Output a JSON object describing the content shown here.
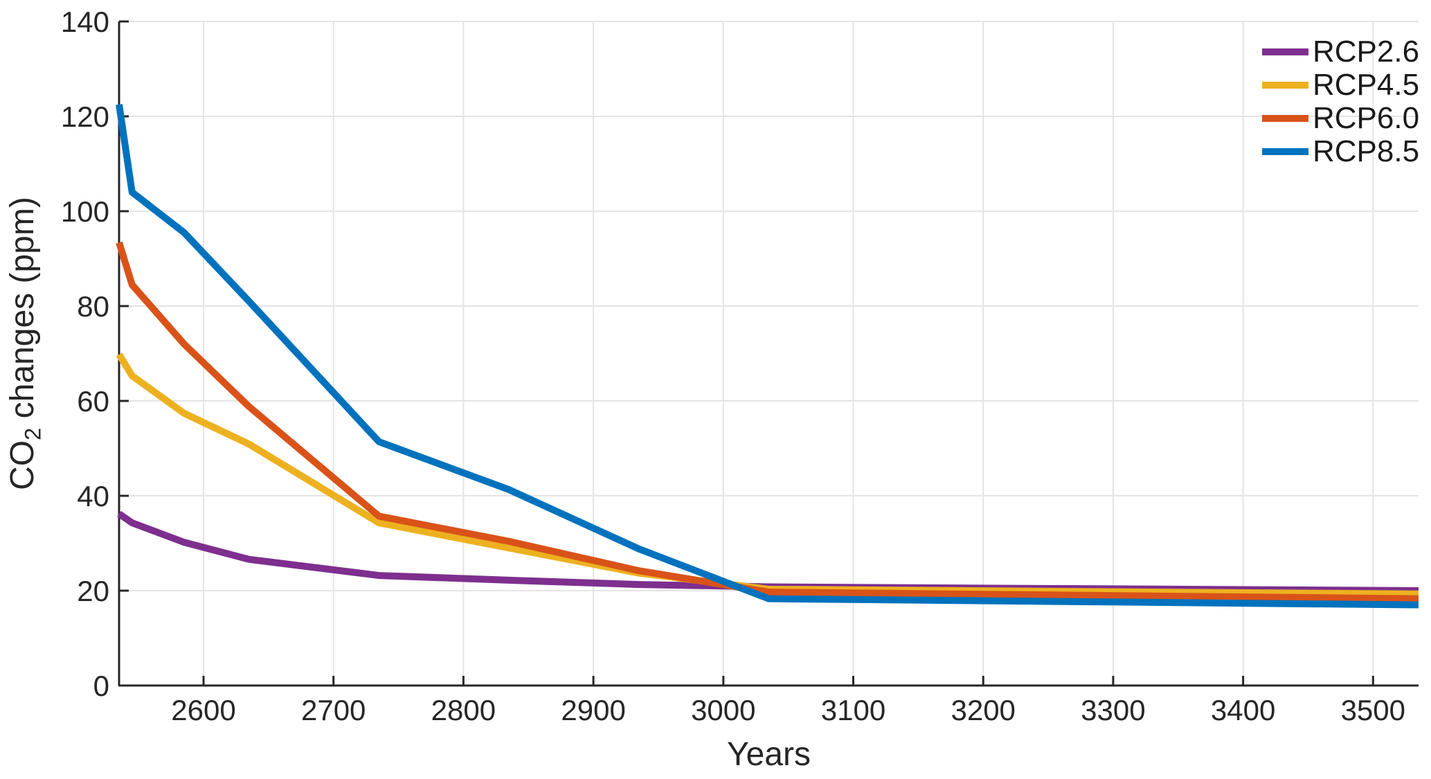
{
  "style": {
    "background": "#ffffff",
    "axis_color": "#262626",
    "grid_color": "#e4e4e4",
    "text_color": "#262626",
    "line_width": 10
  },
  "chart_data": {
    "type": "line",
    "title": "",
    "xlabel": "Years",
    "ylabel": "CO2 changes (ppm)",
    "ylabel_parts": {
      "pre": "CO",
      "sub": "2",
      "post": " changes (ppm)"
    },
    "xlim": [
      2535,
      3535
    ],
    "ylim": [
      0,
      140
    ],
    "xticks": [
      2600,
      2700,
      2800,
      2900,
      3000,
      3100,
      3200,
      3300,
      3400,
      3500
    ],
    "yticks": [
      0,
      20,
      40,
      60,
      80,
      100,
      120,
      140
    ],
    "grid": true,
    "legend_position": "top-right",
    "x": [
      2535,
      2545,
      2585,
      2635,
      2735,
      2835,
      2935,
      3035,
      3535
    ],
    "series": [
      {
        "name": "RCP2.6",
        "color": "#7E2F8E",
        "values": [
          36.2,
          34.3,
          30.2,
          26.6,
          23.2,
          22.2,
          21.3,
          20.8,
          20.0
        ]
      },
      {
        "name": "RCP4.5",
        "color": "#EDB120",
        "values": [
          69.8,
          65.3,
          57.4,
          50.9,
          34.3,
          29.0,
          23.7,
          20.3,
          19.3
        ]
      },
      {
        "name": "RCP6.0",
        "color": "#D95319",
        "values": [
          93.4,
          84.5,
          72.0,
          58.8,
          35.7,
          30.4,
          24.2,
          19.7,
          18.3
        ]
      },
      {
        "name": "RCP8.5",
        "color": "#0072BD",
        "values": [
          122.5,
          104.0,
          95.5,
          81.0,
          51.4,
          41.3,
          28.8,
          18.3,
          17.0
        ]
      }
    ]
  }
}
